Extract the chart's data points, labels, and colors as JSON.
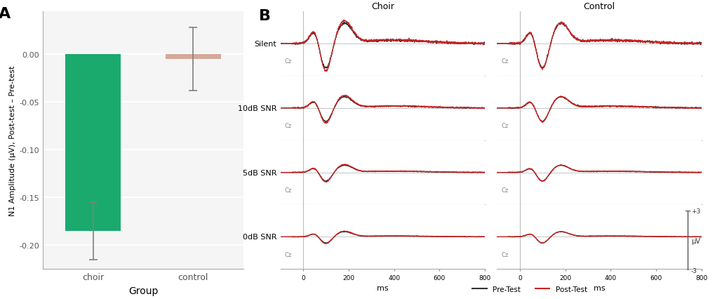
{
  "panel_A": {
    "groups": [
      "choir",
      "control"
    ],
    "bar_values": [
      -0.185,
      -0.005
    ],
    "bar_colors": [
      "#1aaa6e",
      "#d4a99a"
    ],
    "error_bars": [
      {
        "lower": -0.215,
        "upper": -0.155
      },
      {
        "lower": -0.038,
        "upper": 0.028
      }
    ],
    "error_color": "#808080",
    "ylabel": "N1 Amplitude (μV), Post-test – Pre-test",
    "xlabel": "Group",
    "ylim": [
      -0.225,
      0.045
    ],
    "yticks": [
      0.0,
      -0.05,
      -0.1,
      -0.15,
      -0.2
    ],
    "background_color": "#f5f5f5",
    "grid_color": "#ffffff",
    "panel_label": "A"
  },
  "panel_B": {
    "panel_label": "B",
    "columns": [
      "Choir",
      "Control"
    ],
    "rows": [
      "Silent",
      "10dB SNR",
      "5dB SNR",
      "0dB SNR"
    ],
    "x_range": [
      -100,
      800
    ],
    "y_range": [
      -3,
      3
    ],
    "pre_color": "#333333",
    "post_color": "#cc2222",
    "background_color": "#ffffff",
    "scale_label_y": "μV",
    "scale_top": "+3",
    "scale_bottom": "-3",
    "xlabel": "ms",
    "Cz_label": "Cz"
  }
}
